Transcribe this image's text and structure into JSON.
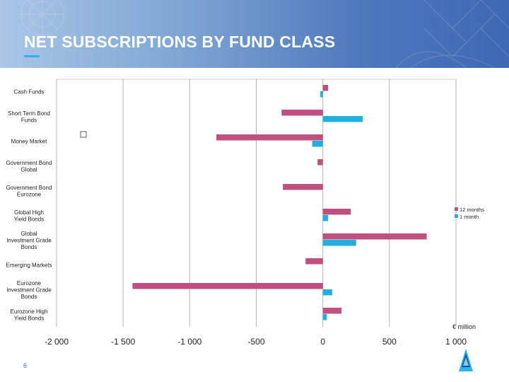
{
  "slide": {
    "title": "NET SUBSCRIPTIONS BY FUND CLASS",
    "page_number": "6"
  },
  "colors": {
    "series_12m": "#c0507d",
    "series_1m": "#1fb0e0",
    "header_start": "#a9c6e6",
    "header_end": "#3e68b3",
    "accent": "#2fb3e6"
  },
  "icons": {
    "logo": "company-logo-icon"
  },
  "chart_data": {
    "type": "bar",
    "orientation": "horizontal",
    "categories": [
      "Cash Funds",
      "Short Term Bond Funds",
      "Money Market",
      "Government Bond Global",
      "Government Bond Eurozone",
      "Global High Yield Bonds",
      "Global Investment Grade Bonds",
      "Emerging Markets",
      "Eurozone Investment Grade Bonds",
      "Eurozone High Yield Bonds"
    ],
    "series": [
      {
        "name": "12 months",
        "values": [
          40,
          -310,
          -800,
          -40,
          -300,
          210,
          780,
          -130,
          -1430,
          140
        ]
      },
      {
        "name": "1 month",
        "values": [
          -20,
          300,
          -80,
          0,
          0,
          40,
          250,
          0,
          70,
          30
        ]
      }
    ],
    "xlim": [
      -2000,
      1000
    ],
    "xticks": [
      "-2 000",
      "-1 500",
      "-1 000",
      "-500",
      "0",
      "500",
      "1 000"
    ],
    "xlabel": "€ million",
    "grid": true,
    "legend_position": "right"
  }
}
